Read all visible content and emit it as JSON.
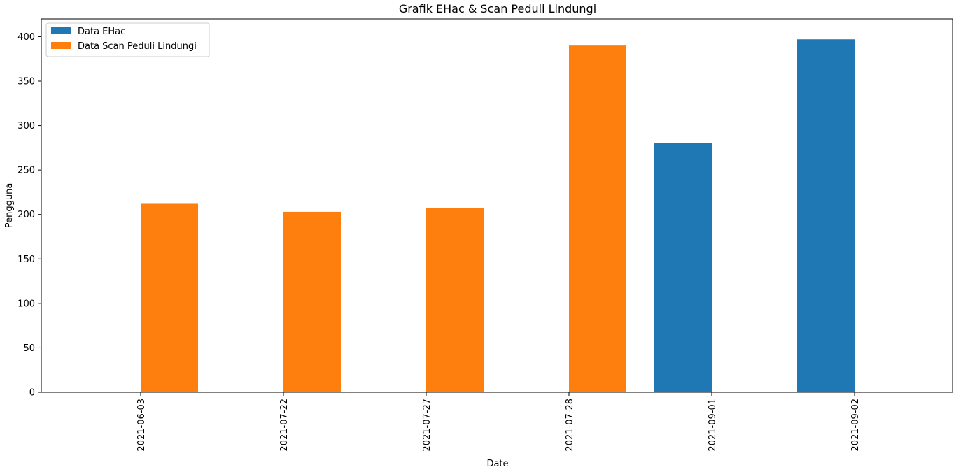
{
  "chart_data": {
    "type": "bar",
    "title": "Grafik EHac & Scan Peduli Lindungi",
    "xlabel": "Date",
    "ylabel": "Pengguna",
    "categories": [
      "2021-06-03",
      "2021-07-22",
      "2021-07-27",
      "2021-07-28",
      "2021-09-01",
      "2021-09-02"
    ],
    "series": [
      {
        "name": "Data EHac",
        "color": "#1f77b4",
        "values": [
          0,
          0,
          0,
          0,
          280,
          397
        ]
      },
      {
        "name": "Data Scan Peduli Lindungi",
        "color": "#ff7f0e",
        "values": [
          212,
          203,
          207,
          390,
          0,
          0
        ]
      }
    ],
    "ylim": [
      0,
      420
    ],
    "yticks": [
      0,
      50,
      100,
      150,
      200,
      250,
      300,
      350,
      400
    ],
    "legend": "top-left",
    "grid": false
  }
}
